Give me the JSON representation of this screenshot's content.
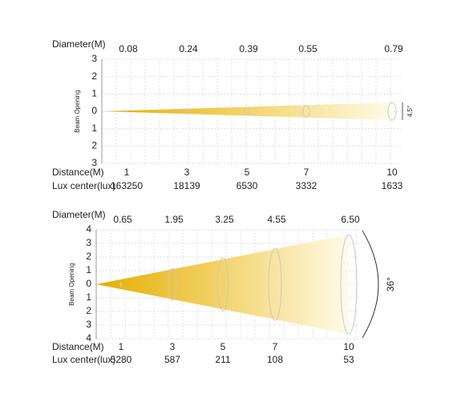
{
  "panels": [
    {
      "diameter_label": "Diameter(M)",
      "diameters": [
        "0.08",
        "0.24",
        "0.39",
        "0.55",
        "0.79"
      ],
      "y_axis_label": "Beam Opening",
      "y_ticks": [
        "3",
        "2",
        "1",
        "0",
        "1",
        "2",
        "3"
      ],
      "angle": "4.5°",
      "distance_label": "Distance(M)",
      "distances": [
        "1",
        "3",
        "5",
        "7",
        "10"
      ],
      "lux_label": "Lux center(lux)",
      "lux": [
        "163250",
        "18139",
        "6530",
        "3332",
        "1633"
      ]
    },
    {
      "diameter_label": "Diameter(M)",
      "diameters": [
        "0.65",
        "1.95",
        "3.25",
        "4.55",
        "6.50"
      ],
      "y_axis_label": "Beam Opening",
      "y_ticks": [
        "4",
        "3",
        "2",
        "1",
        "0",
        "1",
        "2",
        "3",
        "4"
      ],
      "angle": "36°",
      "distance_label": "Distance(M)",
      "distances": [
        "1",
        "3",
        "5",
        "7",
        "10"
      ],
      "lux_label": "Lux center(lux)",
      "lux": [
        "5280",
        "587",
        "211",
        "108",
        "53"
      ]
    }
  ]
}
